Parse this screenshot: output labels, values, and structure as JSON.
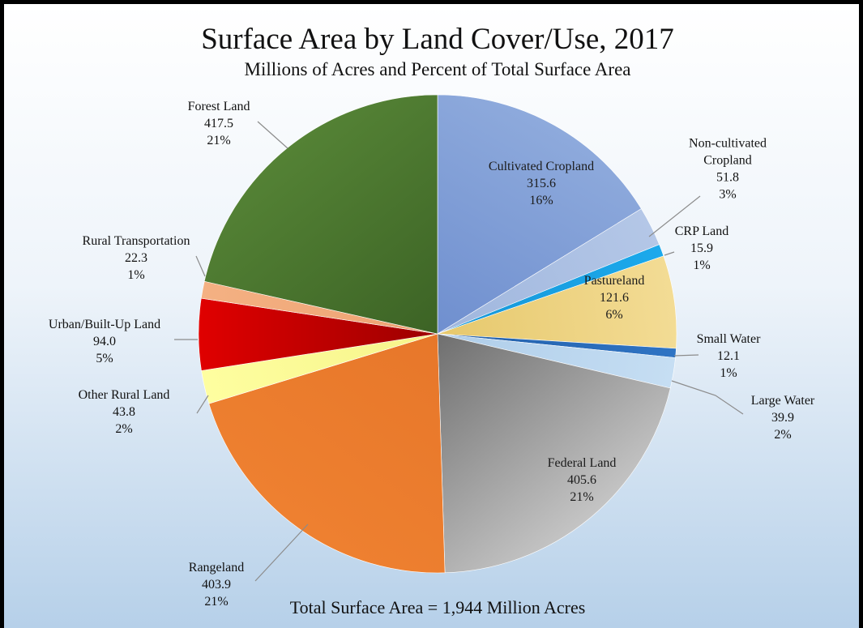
{
  "chart_data": {
    "type": "pie",
    "title": "Surface Area by Land Cover/Use, 2017",
    "subtitle": "Millions of Acres and Percent of Total Surface Area",
    "note": "Total Surface Area = 1,944 Million Acres",
    "slices": [
      {
        "label": [
          "Cultivated Cropland"
        ],
        "value": 315.6,
        "value_text": "315.6",
        "percent": "16%",
        "color": "#8eaadc",
        "color_dark": "#6f8fcf"
      },
      {
        "label": [
          "Non-cultivated",
          "Cropland"
        ],
        "value": 51.8,
        "value_text": "51.8",
        "percent": "3%",
        "color": "#b4c7e7",
        "color_dark": "#9fb6dd"
      },
      {
        "label": [
          "CRP Land"
        ],
        "value": 15.9,
        "value_text": "15.9",
        "percent": "1%",
        "color": "#1ba9ec",
        "color_dark": "#1796d6"
      },
      {
        "label": [
          "Pastureland"
        ],
        "value": 121.6,
        "value_text": "121.6",
        "percent": "6%",
        "color": "#f3dc95",
        "color_dark": "#e6c86c"
      },
      {
        "label": [
          "Small Water"
        ],
        "value": 12.1,
        "value_text": "12.1",
        "percent": "1%",
        "color": "#2f74c4",
        "color_dark": "#235fa8"
      },
      {
        "label": [
          "Large Water"
        ],
        "value": 39.9,
        "value_text": "39.9",
        "percent": "2%",
        "color": "#c6def3",
        "color_dark": "#aecde9"
      },
      {
        "label": [
          "Federal Land"
        ],
        "value": 405.6,
        "value_text": "405.6",
        "percent": "21%",
        "color": "#c4c4c4",
        "color_dark": "#6f6f6f"
      },
      {
        "label": [
          "Rangeland"
        ],
        "value": 403.9,
        "value_text": "403.9",
        "percent": "21%",
        "color": "#ee8030",
        "color_dark": "#e7772a"
      },
      {
        "label": [
          "Other Rural Land"
        ],
        "value": 43.8,
        "value_text": "43.8",
        "percent": "2%",
        "color": "#fefea0",
        "color_dark": "#f6f48a"
      },
      {
        "label": [
          "Urban/Built-Up Land"
        ],
        "value": 94.0,
        "value_text": "94.0",
        "percent": "5%",
        "color": "#e00000",
        "color_dark": "#9c0000"
      },
      {
        "label": [
          "Rural Transportation"
        ],
        "value": 22.3,
        "value_text": "22.3",
        "percent": "1%",
        "color": "#f4b183",
        "color_dark": "#eda272"
      },
      {
        "label": [
          "Forest Land"
        ],
        "value": 417.5,
        "value_text": "417.5",
        "percent": "21%",
        "color": "#548235",
        "color_dark": "#3c6325"
      }
    ]
  }
}
